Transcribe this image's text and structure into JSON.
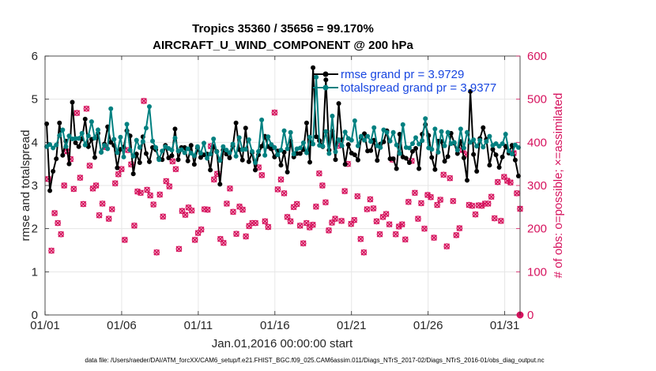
{
  "chart_data": {
    "type": "line",
    "title": "Tropics 35360 / 35656 = 99.170%",
    "subtitle": "AIRCRAFT_U_WIND_COMPONENT @ 200 hPa",
    "xlabel": "Jan.01,2016 00:00:00 start",
    "ylabel": "rmse and totalspread",
    "ylabel_right": "# of obs: o=possible; ×=assimilated",
    "footnote": "data file: /Users/raeder/DAI/ATM_forcXX/CAM6_setup/f.e21.FHIST_BGC.f09_025.CAM6assim.011/Diags_NTrS_2017-02/Diags_NTrS_2016-01/obs_diag_output.nc",
    "x_range": [
      1,
      32
    ],
    "ylim": [
      0,
      6
    ],
    "ylim_right": [
      0,
      600
    ],
    "x_ticks": [
      {
        "value": 1,
        "label": "01/01"
      },
      {
        "value": 6,
        "label": "01/06"
      },
      {
        "value": 11,
        "label": "01/11"
      },
      {
        "value": 16,
        "label": "01/16"
      },
      {
        "value": 21,
        "label": "01/21"
      },
      {
        "value": 26,
        "label": "01/26"
      },
      {
        "value": 31,
        "label": "01/31"
      }
    ],
    "y_ticks": [
      "0",
      "1",
      "2",
      "3",
      "4",
      "5",
      "6"
    ],
    "y_ticks_right": [
      "0",
      "100",
      "200",
      "300",
      "400",
      "500",
      "600"
    ],
    "legend": [
      {
        "label": "rmse grand pr = 3.9729",
        "color": "#000000"
      },
      {
        "label": "totalspread grand pr = 3.9377",
        "color": "#008080"
      }
    ],
    "colors": {
      "rmse": "#000000",
      "spread": "#008080",
      "obs": "#d6135e"
    },
    "series": [
      {
        "name": "rmse",
        "values": [
          4.43,
          2.88,
          3.33,
          3.62,
          4.45,
          3.7,
          4.03,
          3.5,
          4.93,
          3.99,
          3.9,
          4.08,
          4.54,
          3.9,
          4.07,
          3.65,
          4.21,
          3.77,
          3.96,
          4.36,
          4.0,
          3.93,
          3.41,
          3.84,
          3.89,
          4.27,
          4.15,
          3.27,
          3.73,
          3.53,
          4.13,
          3.74,
          3.55,
          3.88,
          3.83,
          3.63,
          3.6,
          3.93,
          3.64,
          3.69,
          4.31,
          3.6,
          3.88,
          3.88,
          3.57,
          3.93,
          3.49,
          3.87,
          3.65,
          3.71,
          3.73,
          3.36,
          3.9,
          3.79,
          3.03,
          3.82,
          3.73,
          3.64,
          3.91,
          4.45,
          3.83,
          3.59,
          4.33,
          3.55,
          3.76,
          3.36,
          3.71,
          3.91,
          4.14,
          3.9,
          3.85,
          3.66,
          3.8,
          3.47,
          3.77,
          3.31,
          4.03,
          3.66,
          3.74,
          3.74,
          3.83,
          4.45,
          3.54,
          5.73,
          4.13,
          4.04,
          3.9,
          5.45,
          3.82,
          4.26,
          3.6,
          4.9,
          4.06,
          3.49,
          3.95,
          3.75,
          3.71,
          3.59,
          4.11,
          4.2,
          3.8,
          3.81,
          4.05,
          3.58,
          3.96,
          4.01,
          4.27,
          3.62,
          3.62,
          3.39,
          4.19,
          3.66,
          3.63,
          3.53,
          3.79,
          3.86,
          3.39,
          4.19,
          4.41,
          4.16,
          3.65,
          3.37,
          4.03,
          4.02,
          3.56,
          3.67,
          4.21,
          3.98,
          3.74,
          4.02,
          3.64,
          3.12,
          5.18,
          3.72,
          3.33,
          4.09,
          4.34,
          4.07,
          3.47,
          3.84,
          3.71,
          3.42,
          3.66,
          3.91,
          3.75,
          3.93,
          3.59,
          3.22
        ]
      },
      {
        "name": "totalspread",
        "values": [
          3.9,
          3.95,
          3.87,
          3.94,
          4.16,
          4.29,
          3.9,
          4.15,
          4.08,
          4.09,
          4.09,
          4.21,
          3.94,
          4.15,
          4.48,
          4.1,
          4.29,
          3.77,
          3.93,
          3.85,
          4.78,
          4.07,
          3.76,
          4.12,
          3.66,
          4.42,
          3.82,
          3.68,
          4.05,
          3.88,
          4.02,
          4.33,
          4.83,
          4.03,
          3.88,
          3.6,
          3.8,
          3.9,
          3.86,
          3.82,
          4.1,
          3.8,
          3.83,
          3.76,
          3.85,
          3.75,
          3.69,
          3.9,
          3.75,
          3.98,
          3.63,
          3.73,
          4.08,
          3.78,
          3.58,
          3.9,
          3.82,
          3.76,
          3.96,
          3.68,
          4.11,
          3.83,
          3.84,
          4.06,
          3.79,
          3.53,
          3.79,
          4.52,
          3.7,
          4.13,
          3.95,
          3.88,
          3.71,
          3.82,
          4.27,
          3.85,
          4.23,
          3.73,
          3.85,
          3.87,
          3.99,
          3.76,
          4.12,
          3.96,
          5.51,
          3.93,
          3.91,
          4.25,
          3.74,
          4.61,
          3.78,
          4.06,
          3.92,
          4.24,
          4.09,
          4.05,
          4.5,
          3.92,
          4.14,
          4.05,
          4.14,
          4.02,
          4.34,
          3.92,
          3.88,
          4.29,
          4.23,
          4.03,
          4.23,
          3.94,
          3.74,
          4.41,
          3.88,
          3.87,
          3.97,
          4.11,
          3.96,
          4.04,
          4.55,
          3.87,
          3.84,
          4.31,
          3.77,
          4.25,
          3.92,
          4.23,
          3.97,
          4.0,
          3.82,
          4.31,
          3.87,
          4.23,
          4.0,
          4.06,
          3.91,
          4.05,
          3.89,
          4.02,
          4.14,
          3.93,
          3.97,
          3.91,
          3.97,
          4.19,
          3.8,
          3.73,
          3.94,
          3.88
        ]
      },
      {
        "name": "obs_possible",
        "axis": "right",
        "values": [
          315,
          149,
          236,
          213,
          187,
          300,
          379,
          361,
          292,
          468,
          318,
          257,
          478,
          346,
          293,
          300,
          231,
          258,
          389,
          223,
          245,
          305,
          326,
          338,
          174,
          382,
          349,
          207,
          286,
          283,
          496,
          290,
          277,
          256,
          145,
          279,
          228,
          310,
          298,
          356,
          338,
          153,
          241,
          232,
          249,
          242,
          174,
          190,
          198,
          245,
          244,
          391,
          314,
          327,
          176,
          167,
          258,
          293,
          239,
          188,
          251,
          244,
          182,
          206,
          213,
          213,
          342,
          324,
          217,
          204,
          388,
          469,
          291,
          314,
          282,
          227,
          217,
          250,
          257,
          207,
          166,
          213,
          203,
          209,
          251,
          328,
          300,
          261,
          196,
          214,
          223,
          392,
          218,
          287,
          350,
          211,
          220,
          275,
          176,
          145,
          245,
          268,
          247,
          217,
          187,
          227,
          234,
          210,
          360,
          187,
          205,
          210,
          175,
          262,
          357,
          283,
          223,
          259,
          200,
          278,
          273,
          179,
          255,
          267,
          325,
          159,
          317,
          264,
          185,
          201,
          382,
          372,
          255,
          253,
          233,
          254,
          253,
          258,
          258,
          274,
          224,
          308,
          218,
          320,
          311,
          307,
          375,
          282,
          246
        ]
      },
      {
        "name": "obs_assimilated",
        "axis": "right",
        "values": [
          315,
          149,
          236,
          213,
          187,
          300,
          379,
          361,
          292,
          468,
          318,
          257,
          478,
          346,
          293,
          300,
          231,
          258,
          389,
          223,
          245,
          305,
          326,
          338,
          174,
          382,
          349,
          207,
          286,
          283,
          496,
          290,
          277,
          256,
          145,
          279,
          228,
          310,
          298,
          356,
          338,
          153,
          241,
          232,
          249,
          242,
          174,
          190,
          198,
          245,
          244,
          391,
          314,
          327,
          176,
          167,
          258,
          293,
          239,
          188,
          251,
          244,
          182,
          206,
          213,
          213,
          342,
          324,
          217,
          204,
          388,
          469,
          291,
          314,
          282,
          227,
          217,
          250,
          257,
          207,
          166,
          213,
          203,
          209,
          251,
          328,
          300,
          261,
          196,
          214,
          223,
          392,
          218,
          287,
          350,
          211,
          220,
          275,
          176,
          145,
          245,
          268,
          247,
          217,
          187,
          227,
          234,
          210,
          360,
          187,
          205,
          210,
          175,
          262,
          357,
          283,
          223,
          259,
          200,
          278,
          273,
          179,
          255,
          267,
          325,
          159,
          317,
          264,
          185,
          201,
          382,
          372,
          255,
          253,
          233,
          254,
          253,
          258,
          258,
          274,
          224,
          308,
          218,
          320,
          311,
          307,
          375,
          282,
          246
        ]
      }
    ]
  }
}
